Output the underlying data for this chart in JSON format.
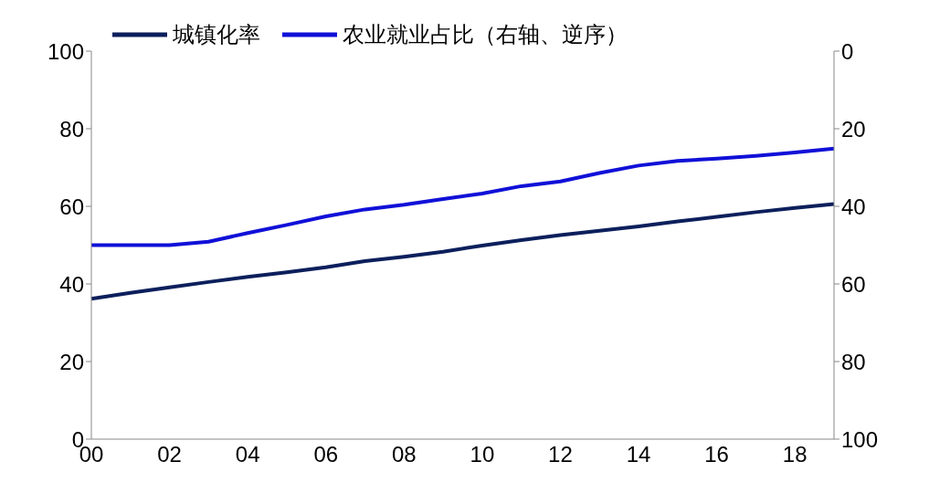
{
  "chart_data": {
    "type": "line",
    "categories": [
      "00",
      null,
      "02",
      null,
      "04",
      null,
      "06",
      null,
      "08",
      null,
      "10",
      null,
      "12",
      null,
      "14",
      null,
      "16",
      null,
      "18",
      null
    ],
    "series": [
      {
        "name": "城镇化率",
        "color": "#0c1f5c",
        "values": [
          36.2,
          37.7,
          39.1,
          40.5,
          41.8,
          43.0,
          44.3,
          45.9,
          47.0,
          48.3,
          49.9,
          51.3,
          52.6,
          53.7,
          54.8,
          56.1,
          57.3,
          58.5,
          59.6,
          60.6
        ]
      },
      {
        "name": "农业就业占比（右轴、逆序）",
        "color": "#1010d8",
        "axis": "y2",
        "values": [
          50.0,
          50.0,
          50.0,
          49.1,
          46.9,
          44.8,
          42.6,
          40.8,
          39.6,
          38.1,
          36.7,
          34.8,
          33.6,
          31.4,
          29.5,
          28.3,
          27.7,
          27.0,
          26.1,
          25.1
        ]
      }
    ],
    "ylim": [
      0,
      100
    ],
    "yticks": [
      0,
      20,
      40,
      60,
      80,
      100
    ],
    "y2lim": [
      100,
      0
    ],
    "y2ticks": [
      0,
      20,
      40,
      60,
      80,
      100
    ],
    "grid": false,
    "legend": "top left",
    "marker": "none",
    "line_style": "solid"
  }
}
